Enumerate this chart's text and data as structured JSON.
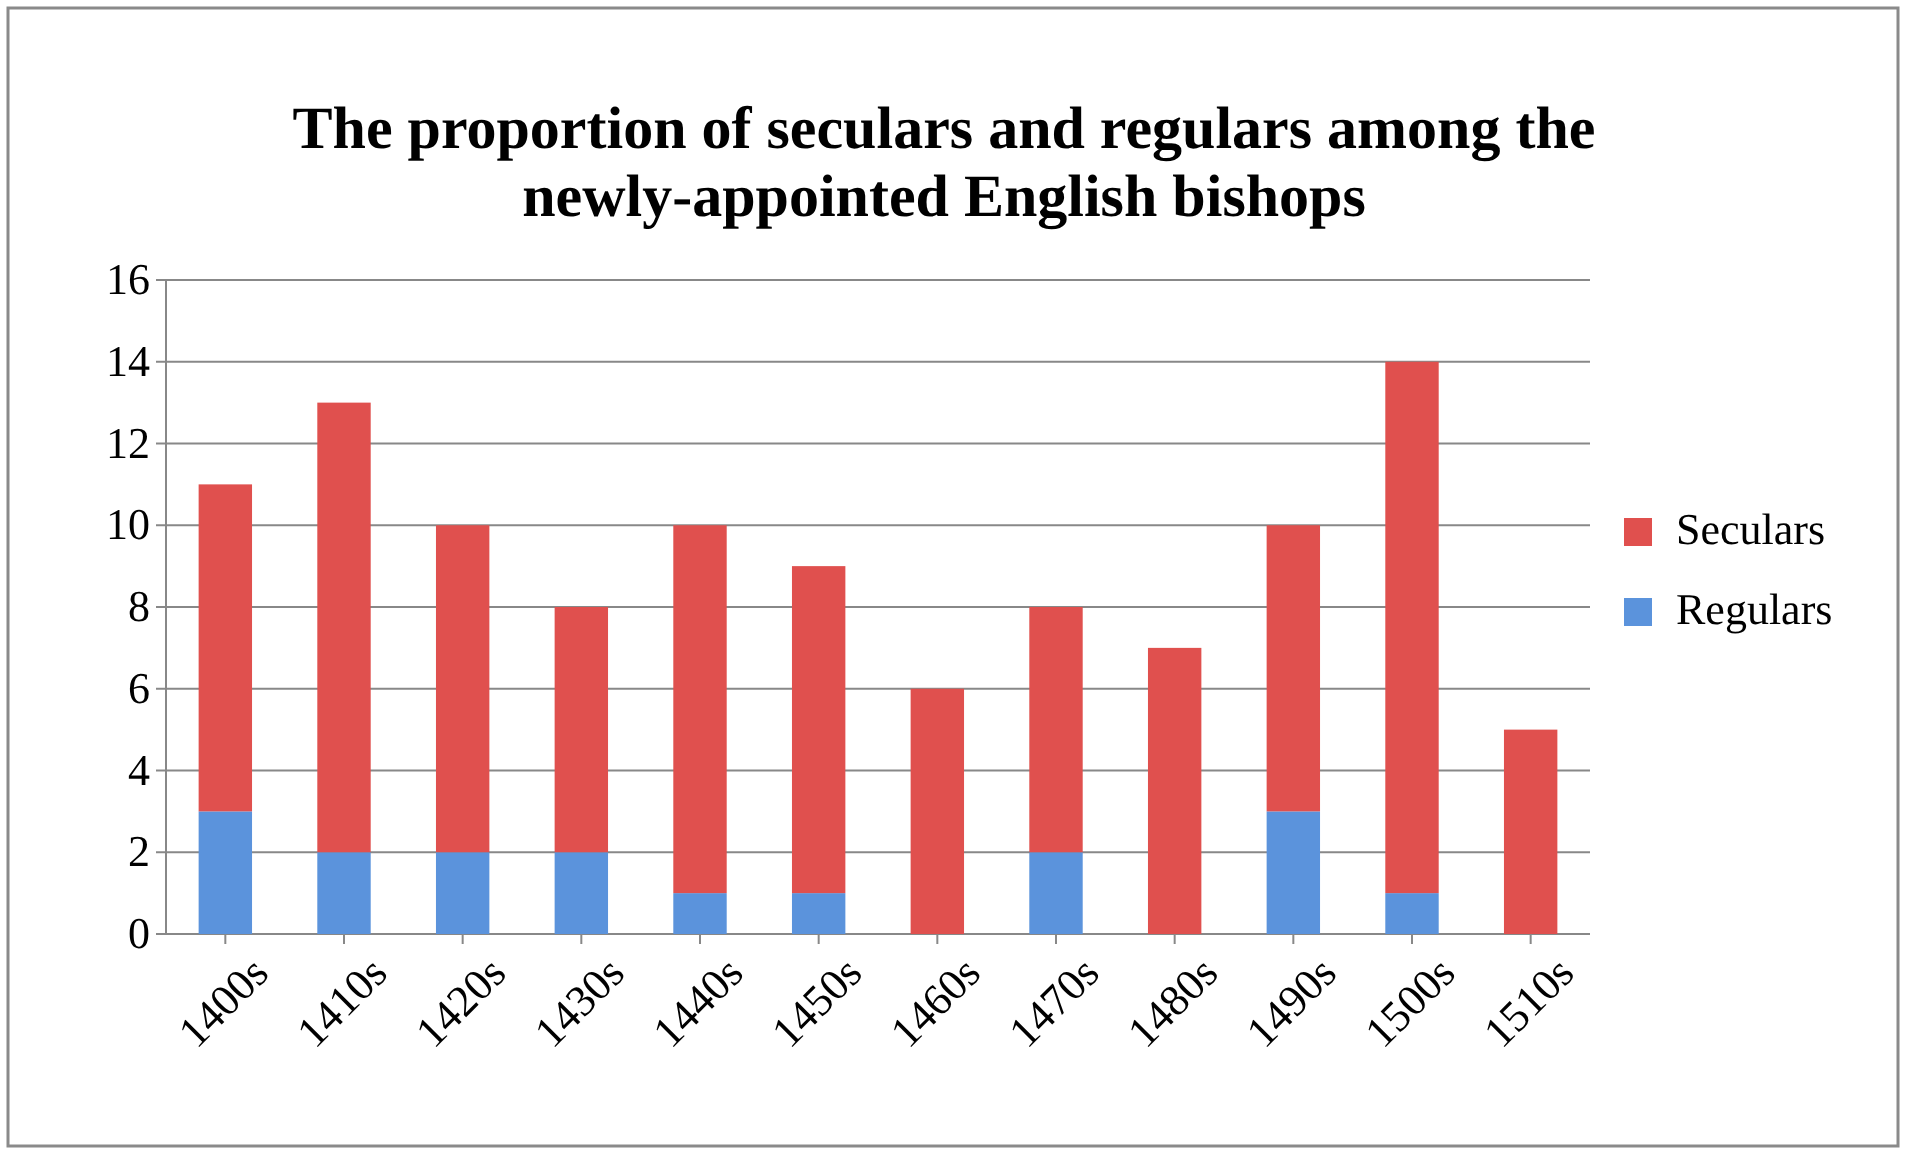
{
  "chart_data": {
    "type": "bar",
    "title": "The proportion of seculars and regulars among the newly-appointed English bishops",
    "categories": [
      "1400s",
      "1410s",
      "1420s",
      "1430s",
      "1440s",
      "1450s",
      "1460s",
      "1470s",
      "1480s",
      "1490s",
      "1500s",
      "1510s"
    ],
    "stacked": true,
    "series": [
      {
        "name": "Regulars",
        "color": "#5b93dc",
        "values": [
          3,
          2,
          2,
          2,
          1,
          1,
          0,
          2,
          0,
          3,
          1,
          0
        ]
      },
      {
        "name": "Seculars",
        "color": "#e0504e",
        "values": [
          8,
          11,
          8,
          6,
          9,
          8,
          6,
          6,
          7,
          7,
          13,
          5
        ]
      }
    ],
    "ylim": [
      0,
      16
    ],
    "yticks": [
      0,
      2,
      4,
      6,
      8,
      10,
      12,
      14,
      16
    ],
    "grid": "y",
    "legend": "right"
  }
}
